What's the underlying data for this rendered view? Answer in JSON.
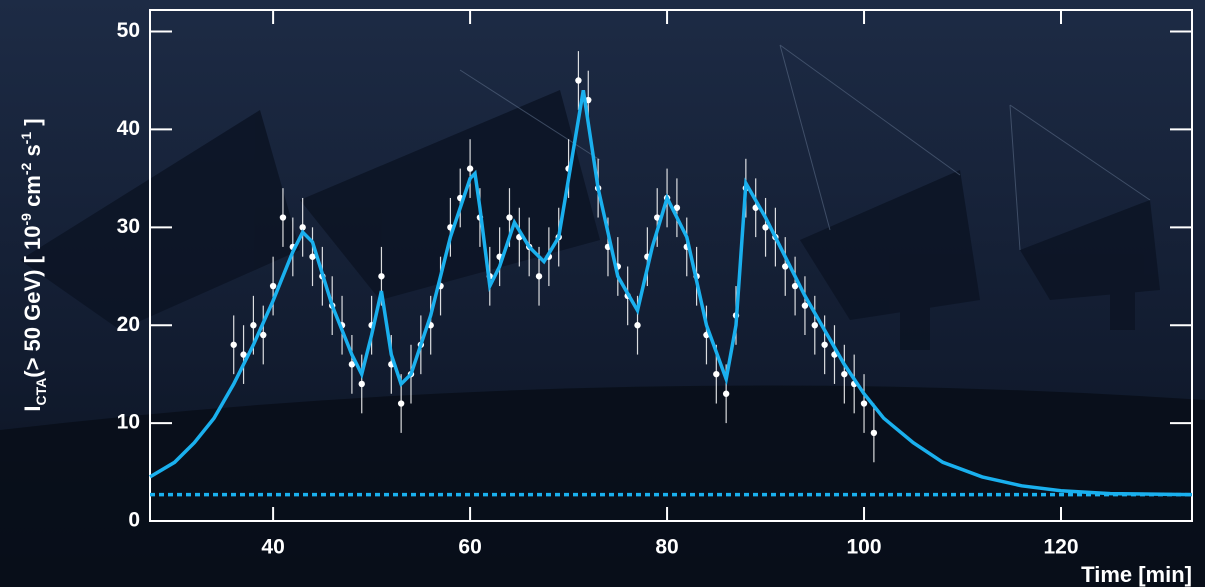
{
  "chart_data": {
    "type": "scatter",
    "x_label": "Time [min]",
    "y_label_parts": [
      "I",
      "CTA",
      "(> 50 GeV) [ 10",
      "-9",
      " cm",
      "-2",
      " s",
      "-1",
      " ]"
    ],
    "xlim": [
      27.5,
      133.3
    ],
    "ylim": [
      0,
      52.2
    ],
    "xticks": [
      40,
      60,
      80,
      100,
      120
    ],
    "yticks": [
      0,
      10,
      20,
      30,
      40,
      50
    ],
    "series": [
      {
        "type": "errorbar",
        "color": "#ffffff",
        "x": [
          36,
          37,
          38,
          39,
          40,
          41,
          42,
          43,
          44,
          45,
          46,
          47,
          48,
          49,
          50,
          51,
          52,
          53,
          54,
          55,
          56,
          57,
          58,
          59,
          60,
          61,
          62,
          63,
          64,
          65,
          66,
          67,
          68,
          69,
          70,
          71,
          72,
          73,
          74,
          75,
          76,
          77,
          78,
          79,
          80,
          81,
          82,
          83,
          84,
          85,
          86,
          87,
          88,
          89,
          90,
          91,
          92,
          93,
          94,
          95,
          96,
          97,
          98,
          99,
          100,
          101
        ],
        "values": [
          18,
          17,
          20,
          19,
          24,
          31,
          28,
          30,
          27,
          25,
          22,
          20,
          16,
          14,
          20,
          25,
          16,
          12,
          15,
          18,
          20,
          24,
          30,
          33,
          36,
          31,
          25,
          27,
          31,
          29,
          28,
          25,
          27,
          29,
          36,
          45,
          43,
          34,
          28,
          26,
          23,
          20,
          27,
          31,
          33,
          32,
          28,
          25,
          19,
          15,
          13,
          21,
          34,
          32,
          30,
          29,
          26,
          24,
          22,
          20,
          18,
          17,
          15,
          14,
          12,
          9
        ],
        "errors": [
          3,
          3,
          3,
          3,
          3,
          3,
          3,
          3,
          3,
          3,
          3,
          3,
          3,
          3,
          3,
          3,
          3,
          3,
          3,
          3,
          3,
          3,
          3,
          3,
          3,
          3,
          3,
          3,
          3,
          3,
          3,
          3,
          3,
          3,
          3,
          3,
          3,
          3,
          3,
          3,
          3,
          3,
          3,
          3,
          3,
          3,
          3,
          3,
          3,
          3,
          3,
          3,
          3,
          3,
          3,
          3,
          3,
          3,
          3,
          3,
          3,
          3,
          3,
          3,
          3,
          3
        ]
      },
      {
        "type": "line",
        "color": "#1ab0ee",
        "dashed": false,
        "x": [
          27.5,
          30,
          32,
          34,
          36,
          38,
          40,
          42,
          43,
          44,
          46,
          48,
          49,
          50,
          51,
          52,
          53,
          54,
          56,
          58,
          60,
          60.5,
          61,
          62,
          63,
          64.5,
          66,
          67.5,
          69,
          70,
          71.5,
          73,
          75,
          77,
          78.5,
          80,
          82,
          84,
          86,
          87,
          88,
          90,
          92,
          94,
          96,
          98,
          100,
          102,
          105,
          108,
          112,
          116,
          120,
          125,
          133.3
        ],
        "values": [
          4.5,
          6,
          8,
          10.5,
          14,
          18,
          22.5,
          27.5,
          29.5,
          28.5,
          22,
          17,
          15,
          19,
          23.5,
          17,
          14,
          15,
          21,
          29,
          35,
          35.5,
          32,
          24,
          26,
          30.5,
          28,
          26.5,
          29,
          35,
          44,
          34,
          25,
          21.5,
          28,
          33,
          29,
          20,
          14.5,
          20,
          34.5,
          31,
          27,
          23,
          19.5,
          16,
          13,
          10.5,
          8,
          6,
          4.5,
          3.6,
          3.1,
          2.8,
          2.7
        ]
      },
      {
        "type": "line",
        "color": "#1ab0ee",
        "dashed": true,
        "x": [
          27.5,
          133.3
        ],
        "values": [
          2.7,
          2.7
        ]
      }
    ]
  }
}
